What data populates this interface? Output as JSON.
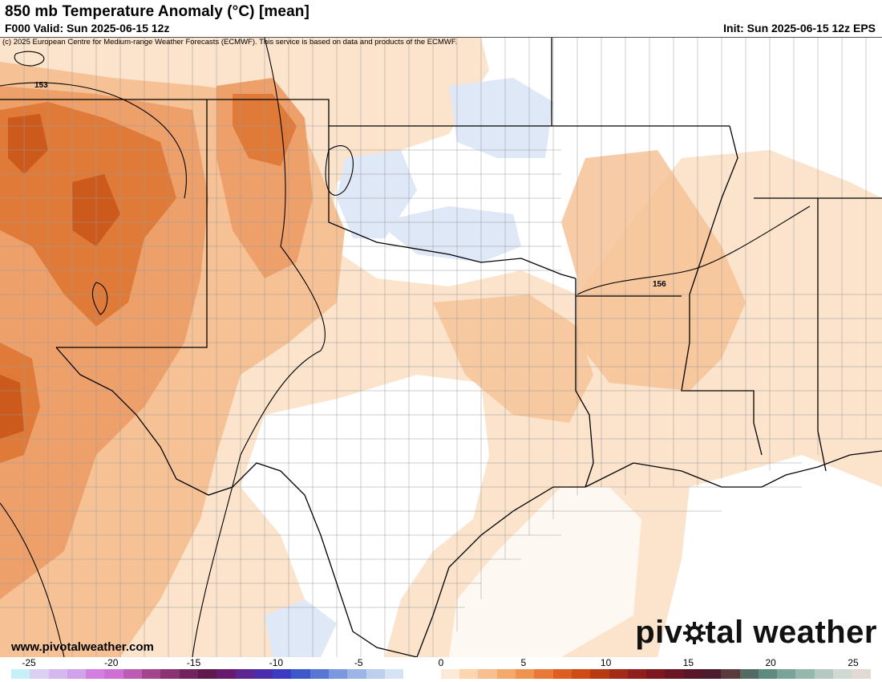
{
  "header": {
    "title": "850 mb Temperature Anomaly (°C) [mean]",
    "valid": "F000 Valid: Sun 2025-06-15 12z",
    "init": "Init: Sun 2025-06-15 12z EPS"
  },
  "map": {
    "copyright": "(c) 2025 European Centre for Medium-range Weather Forecasts (ECMWF). This service is based on data and products of the ECMWF.",
    "contour_labels": [
      "153",
      "156"
    ],
    "region": "Southern Plains / Texas and Gulf Coast",
    "colors": {
      "warm_light": "#fbe3cc",
      "warm_mid": "#f6c295",
      "warm_strong": "#eea06a",
      "warm_deep": "#e07a38",
      "warm_max": "#cc5a1c",
      "cool_light": "#dfe8f6",
      "cool_mid": "#c8d8ef"
    }
  },
  "footer": {
    "website": "www.pivotalweather.com",
    "brand_left": "piv",
    "brand_right": "tal weather"
  },
  "colorbar": {
    "ticks": [
      "-25",
      "-20",
      "-15",
      "-10",
      "-5",
      "0",
      "5",
      "10",
      "15",
      "20",
      "25"
    ],
    "colors": [
      "#c5f0f7",
      "#dcd0f2",
      "#d5b8ee",
      "#cfa2ea",
      "#d27fe0",
      "#cf6fd6",
      "#bd5cb4",
      "#a3458f",
      "#8a3373",
      "#72245e",
      "#5e1a4c",
      "#681a6e",
      "#5c2590",
      "#4a2dad",
      "#3a3cc2",
      "#3d58c9",
      "#5877d4",
      "#7b97de",
      "#9db4e6",
      "#bcd0ee",
      "#d6e3f4",
      "#ffffff",
      "#ffffff",
      "#fde9d6",
      "#fbd4b0",
      "#f8c08e",
      "#f4a96c",
      "#ef9450",
      "#e9793a",
      "#de5e22",
      "#cf4a14",
      "#b83a13",
      "#a32a17",
      "#8f1f1c",
      "#7c1820",
      "#6a1523",
      "#591628",
      "#4c1c2e",
      "#5a3a3e",
      "#556a62",
      "#5e8a7f",
      "#7aa398",
      "#96b7ad",
      "#b4c9c1",
      "#cfd9d2",
      "#e3d9d4"
    ]
  }
}
